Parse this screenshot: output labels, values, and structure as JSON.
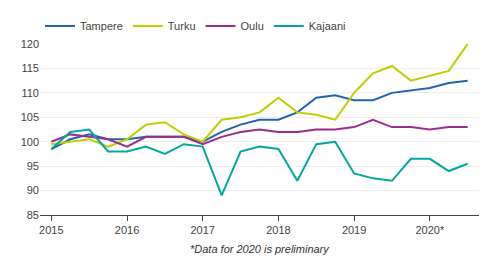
{
  "chart_data": {
    "type": "line",
    "annotations": [
      "*Data for 2020 is preliminary"
    ],
    "x": [
      2015.0,
      2015.25,
      2015.5,
      2015.75,
      2016.0,
      2016.25,
      2016.5,
      2016.75,
      2017.0,
      2017.25,
      2017.5,
      2017.75,
      2018.0,
      2018.25,
      2018.5,
      2018.75,
      2019.0,
      2019.25,
      2019.5,
      2019.75,
      2020.0,
      2020.25,
      2020.5
    ],
    "series": [
      {
        "name": "Tampere",
        "color": "#2464AE",
        "values": [
          98.5,
          100.5,
          101.5,
          100.5,
          100.5,
          101.0,
          101.0,
          101.0,
          100.0,
          102.0,
          103.5,
          104.5,
          104.5,
          106.0,
          109.0,
          109.5,
          108.5,
          108.5,
          110.0,
          110.5,
          111.0,
          112.0,
          112.5
        ]
      },
      {
        "name": "Turku",
        "color": "#BFCF00",
        "values": [
          99.5,
          100.0,
          100.5,
          99.0,
          100.5,
          103.5,
          104.0,
          101.5,
          100.0,
          104.5,
          105.0,
          106.0,
          109.0,
          106.0,
          105.5,
          104.5,
          110.0,
          114.0,
          115.5,
          112.5,
          113.5,
          114.5,
          120.0
        ]
      },
      {
        "name": "Oulu",
        "color": "#9B2D8E",
        "values": [
          100.0,
          101.5,
          101.0,
          100.5,
          99.0,
          101.0,
          101.0,
          101.0,
          99.5,
          101.0,
          102.0,
          102.5,
          102.0,
          102.0,
          102.5,
          102.5,
          103.0,
          104.5,
          103.0,
          103.0,
          102.5,
          103.0,
          103.0
        ]
      },
      {
        "name": "Kajaani",
        "color": "#00A8A0",
        "values": [
          98.5,
          102.0,
          102.5,
          98.0,
          98.0,
          99.0,
          97.5,
          99.5,
          99.0,
          89.0,
          98.0,
          99.0,
          98.5,
          92.0,
          99.5,
          100.0,
          93.5,
          92.5,
          92.0,
          96.5,
          96.5,
          94.0,
          95.5
        ]
      }
    ],
    "xlim": [
      2014.85,
      2020.65
    ],
    "xticks": [
      2015,
      2016,
      2017,
      2018,
      2019,
      {
        "value": 2020,
        "label": "2020*"
      }
    ],
    "ylim": [
      85,
      120
    ],
    "yticks": [
      85,
      90,
      95,
      100,
      105,
      110,
      115,
      120
    ],
    "grid": true,
    "legend": "upper left"
  }
}
